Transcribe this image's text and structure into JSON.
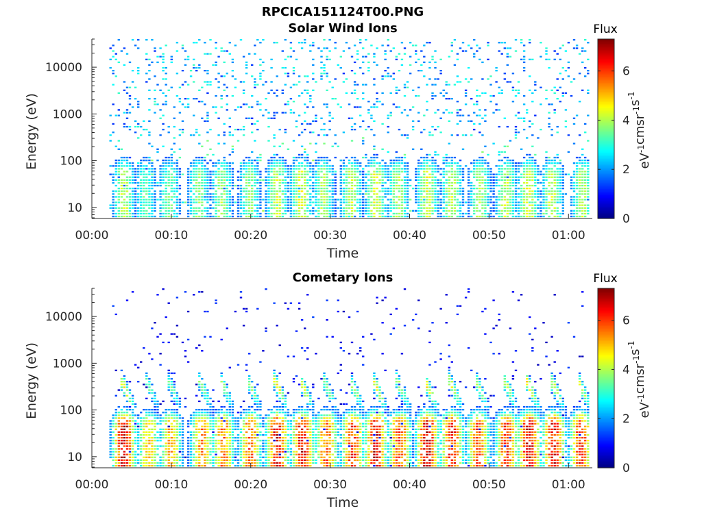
{
  "figure_title": "RPCICA151124T00.PNG",
  "colors": {
    "colormap": [
      "#00007f",
      "#0000ff",
      "#007fff",
      "#00ffff",
      "#7fff7f",
      "#ffff00",
      "#ff7f00",
      "#ff0000",
      "#7f0000"
    ],
    "axes": "#262626"
  },
  "chart_data": [
    {
      "type": "heatmap",
      "title": "Solar Wind Ions",
      "xlabel": "Time",
      "ylabel": "Energy (eV)",
      "x_unit": "minutes",
      "xlim": [
        0,
        63
      ],
      "xtick_values": [
        0,
        10,
        20,
        30,
        40,
        50,
        60
      ],
      "xtick_labels": [
        "00:00",
        "00:10",
        "00:20",
        "00:30",
        "00:40",
        "00:50",
        "01:00"
      ],
      "y_scale": "log",
      "ylim": [
        5.8,
        40000
      ],
      "ytick_values": [
        10,
        100,
        1000,
        10000
      ],
      "ytick_labels": [
        "10",
        "100",
        "1000",
        "10000"
      ],
      "grid": false,
      "data_x_range": [
        2.2,
        62.5
      ],
      "colorbar": {
        "label": "Flux",
        "unit_label": "eV-1cm-2sr-1s-1",
        "range": [
          0,
          7.3
        ],
        "tick_values": [
          0,
          2,
          4,
          6
        ],
        "tick_labels": [
          "0",
          "2",
          "4",
          "6"
        ]
      },
      "bursts": [
        {
          "t": 3.9,
          "level": 4.2
        },
        {
          "t": 6.6,
          "level": 3.4
        },
        {
          "t": 9.6,
          "level": 3.6
        },
        {
          "t": 13.3,
          "level": 3.8
        },
        {
          "t": 16.2,
          "level": 3.9
        },
        {
          "t": 19.7,
          "level": 3.8
        },
        {
          "t": 23.2,
          "level": 4.3
        },
        {
          "t": 26.2,
          "level": 4.4
        },
        {
          "t": 29.0,
          "level": 4.0
        },
        {
          "t": 32.5,
          "level": 4.2
        },
        {
          "t": 35.6,
          "level": 4.4
        },
        {
          "t": 38.4,
          "level": 4.0
        },
        {
          "t": 42.1,
          "level": 4.4
        },
        {
          "t": 45.2,
          "level": 4.2
        },
        {
          "t": 48.7,
          "level": 4.0
        },
        {
          "t": 52.0,
          "level": 4.2
        },
        {
          "t": 54.8,
          "level": 4.4
        },
        {
          "t": 57.8,
          "level": 4.2
        },
        {
          "t": 61.6,
          "level": 4.1
        }
      ],
      "background_flux_range": [
        1.2,
        3.2
      ]
    },
    {
      "type": "heatmap",
      "title": "Cometary Ions",
      "xlabel": "Time",
      "ylabel": "Energy (eV)",
      "x_unit": "minutes",
      "xlim": [
        0,
        63
      ],
      "xtick_values": [
        0,
        10,
        20,
        30,
        40,
        50,
        60
      ],
      "xtick_labels": [
        "00:00",
        "00:10",
        "00:20",
        "00:30",
        "00:40",
        "00:50",
        "01:00"
      ],
      "y_scale": "log",
      "ylim": [
        5.8,
        40000
      ],
      "ytick_values": [
        10,
        100,
        1000,
        10000
      ],
      "ytick_labels": [
        "10",
        "100",
        "1000",
        "10000"
      ],
      "grid": false,
      "data_x_range": [
        2.2,
        62.5
      ],
      "colorbar": {
        "label": "Flux",
        "unit_label": "eV-1cm-2sr-1s-1",
        "range": [
          0,
          7.3
        ],
        "tick_values": [
          0,
          2,
          4,
          6
        ],
        "tick_labels": [
          "0",
          "2",
          "4",
          "6"
        ]
      },
      "bursts": [
        {
          "t": 3.9,
          "level": 6.8
        },
        {
          "t": 7.0,
          "level": 5.0
        },
        {
          "t": 9.8,
          "level": 5.2
        },
        {
          "t": 13.7,
          "level": 5.5
        },
        {
          "t": 16.4,
          "level": 5.6
        },
        {
          "t": 19.8,
          "level": 5.8
        },
        {
          "t": 23.2,
          "level": 6.6
        },
        {
          "t": 26.4,
          "level": 6.6
        },
        {
          "t": 29.4,
          "level": 5.8
        },
        {
          "t": 32.7,
          "level": 6.2
        },
        {
          "t": 35.6,
          "level": 6.8
        },
        {
          "t": 38.6,
          "level": 6.0
        },
        {
          "t": 42.1,
          "level": 6.8
        },
        {
          "t": 45.2,
          "level": 6.4
        },
        {
          "t": 48.5,
          "level": 6.0
        },
        {
          "t": 52.1,
          "level": 6.2
        },
        {
          "t": 54.9,
          "level": 6.8
        },
        {
          "t": 58.0,
          "level": 6.6
        },
        {
          "t": 61.4,
          "level": 6.2
        }
      ],
      "background_flux_range": [
        0.4,
        1.4
      ]
    }
  ]
}
